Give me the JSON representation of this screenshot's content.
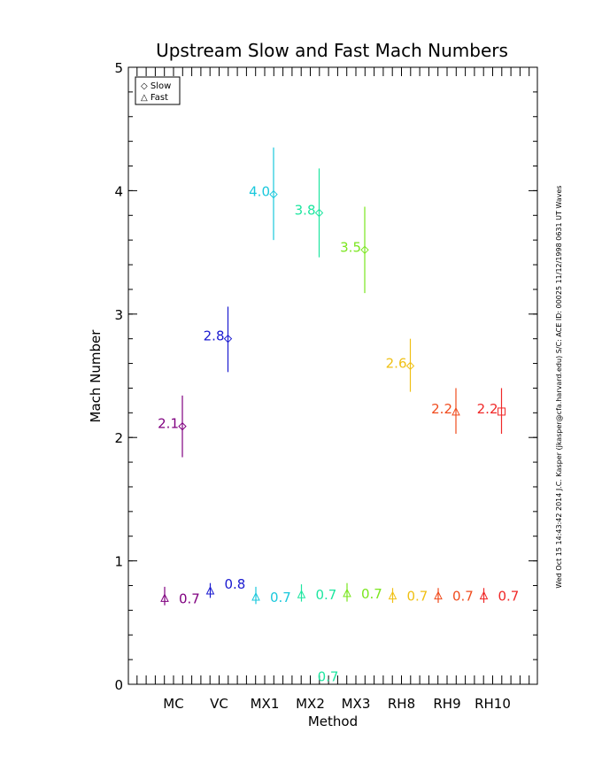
{
  "chart_data": {
    "type": "scatter",
    "title": "Upstream Slow and Fast Mach Numbers",
    "xlabel": "Method",
    "ylabel": "Mach Number",
    "categories": [
      "MC",
      "VC",
      "MX1",
      "MX2",
      "MX3",
      "RH8",
      "RH9",
      "RH10"
    ],
    "ylim": [
      0,
      5
    ],
    "yticks": [
      "0",
      "1",
      "2",
      "3",
      "4",
      "5"
    ],
    "legend": {
      "position": "top-left",
      "entries": [
        "◇ Slow",
        "△ Fast"
      ]
    },
    "colors": [
      "#800080",
      "#1a1ad0",
      "#1ac8dc",
      "#1ee6a0",
      "#7ae61e",
      "#f0c014",
      "#f04c1e",
      "#f02828"
    ],
    "series": [
      {
        "name": "Slow",
        "values": [
          2.09,
          2.8,
          3.97,
          3.82,
          3.52,
          2.58,
          2.21,
          2.21
        ],
        "err_low": [
          1.84,
          2.53,
          3.6,
          3.46,
          3.17,
          2.37,
          2.03,
          2.03
        ],
        "err_high": [
          2.34,
          3.06,
          4.35,
          4.18,
          3.87,
          2.8,
          2.4,
          2.4
        ],
        "labels": [
          "2.1",
          "2.8",
          "4.0",
          "3.8",
          "3.5",
          "2.6",
          "2.2",
          "2.2"
        ],
        "markers": [
          "diamond",
          "diamond",
          "diamond",
          "diamond",
          "diamond",
          "diamond",
          "triangle",
          "square"
        ]
      },
      {
        "name": "Fast",
        "values": [
          0.7,
          0.76,
          0.71,
          0.73,
          0.74,
          0.72,
          0.72,
          0.72
        ],
        "err_low": [
          0.64,
          0.7,
          0.65,
          0.67,
          0.67,
          0.66,
          0.66,
          0.66
        ],
        "err_high": [
          0.79,
          0.82,
          0.79,
          0.81,
          0.82,
          0.78,
          0.78,
          0.78
        ],
        "labels": [
          "0.7",
          "0.8",
          "0.7",
          "0.7",
          "0.7",
          "0.7",
          "0.7",
          "0.7"
        ],
        "markers": [
          "triangle",
          "triangle",
          "triangle",
          "triangle",
          "triangle",
          "triangle",
          "triangle",
          "triangle"
        ]
      }
    ],
    "extra_label": {
      "text": "0.7",
      "x": "MX2",
      "y": 0.04,
      "color": "#1ee6a0"
    }
  },
  "side_note": "Wed Oct 15 14:43:42 2014   J.C. Kasper (jkasper@cfa.harvard.edu)   S/C: ACE ID: 00025 11/12/1998   0631 UT Waves"
}
